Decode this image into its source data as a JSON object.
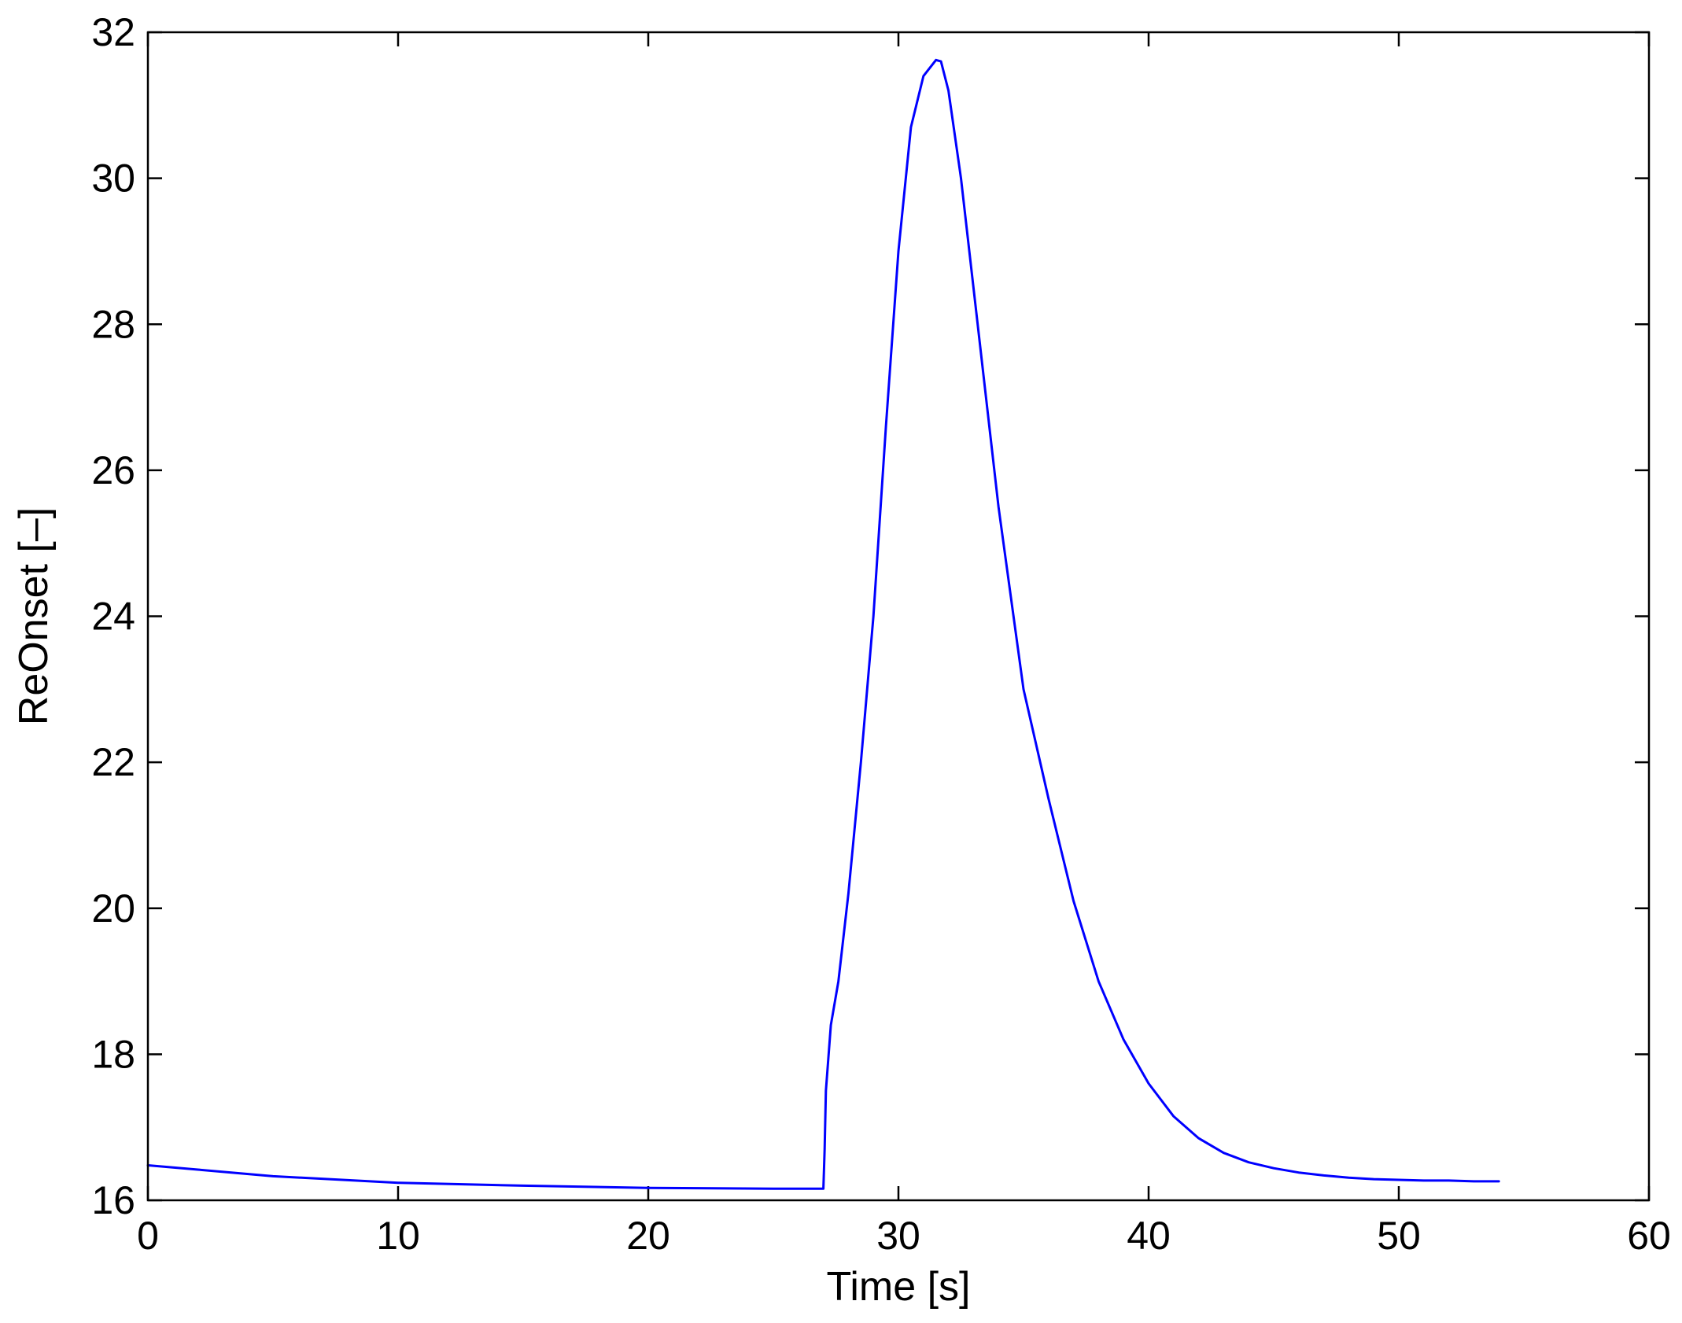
{
  "chart_data": {
    "type": "line",
    "xlabel": "Time [s]",
    "ylabel": "ReOnset [–]",
    "xlim": [
      0,
      60
    ],
    "ylim": [
      16,
      32
    ],
    "xticks": [
      0,
      10,
      20,
      30,
      40,
      50,
      60
    ],
    "yticks": [
      16,
      18,
      20,
      22,
      24,
      26,
      28,
      30,
      32
    ],
    "grid": false,
    "series": [
      {
        "color": "#0000ff",
        "x": [
          0,
          2,
          5,
          10,
          15,
          20,
          25,
          27,
          27.05,
          27.1,
          27.3,
          27.6,
          28,
          28.5,
          29,
          29.5,
          30,
          30.5,
          31,
          31.5,
          31.7,
          32,
          32.5,
          33,
          33.5,
          34,
          35,
          36,
          37,
          38,
          39,
          40,
          41,
          42,
          43,
          44,
          45,
          46,
          47,
          48,
          49,
          50,
          51,
          52,
          53,
          54
        ],
        "y": [
          16.48,
          16.42,
          16.33,
          16.24,
          16.2,
          16.17,
          16.16,
          16.16,
          16.7,
          17.5,
          18.4,
          19.0,
          20.2,
          22.0,
          24.0,
          26.6,
          29.0,
          30.7,
          31.4,
          31.62,
          31.6,
          31.2,
          30.0,
          28.5,
          27.0,
          25.5,
          23.0,
          21.5,
          20.1,
          19.0,
          18.2,
          17.6,
          17.15,
          16.85,
          16.65,
          16.52,
          16.44,
          16.38,
          16.34,
          16.31,
          16.29,
          16.28,
          16.27,
          16.27,
          16.26,
          16.26
        ]
      }
    ]
  }
}
